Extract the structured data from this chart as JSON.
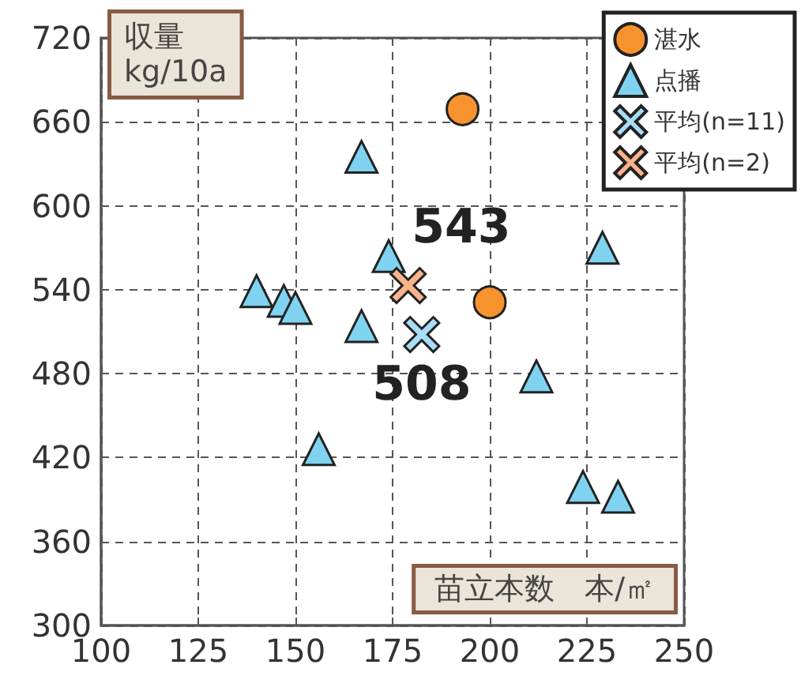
{
  "chart_data": {
    "type": "scatter",
    "xlabel": "苗立本数　本/㎡",
    "ylabel": "収量\nkg/10a",
    "xlim": [
      100,
      250
    ],
    "xticks": [
      100,
      125,
      150,
      175,
      200,
      225,
      250
    ],
    "ylim": [
      300,
      720
    ],
    "yticks": [
      300,
      360,
      420,
      480,
      540,
      600,
      660,
      720
    ],
    "grid": true,
    "legend": "top right",
    "series": [
      {
        "name": "湛水",
        "color": "#f7932e",
        "marker": "circle",
        "x": [
          193,
          200
        ],
        "values": [
          669,
          531
        ]
      },
      {
        "name": "点播",
        "color": "#7fd3f0",
        "marker": "triangle",
        "x": [
          167,
          174,
          140,
          147,
          150,
          167,
          212,
          156,
          224,
          233,
          229
        ],
        "values": [
          635,
          564,
          539,
          532,
          527,
          514,
          478,
          426,
          399,
          392,
          570
        ]
      },
      {
        "name": "平均(n=11)",
        "color": "#a6def6",
        "marker": "cross",
        "x": [
          182.5
        ],
        "values": [
          508
        ],
        "value_labels": [
          "508"
        ]
      },
      {
        "name": "平均(n=2)",
        "color": "#f9b48a",
        "marker": "cross",
        "x": [
          179
        ],
        "values": [
          543
        ],
        "value_labels": [
          "543"
        ]
      }
    ]
  }
}
